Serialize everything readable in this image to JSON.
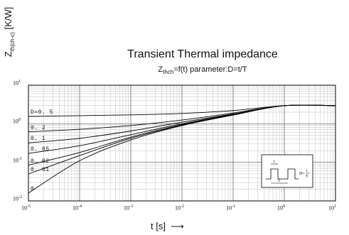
{
  "chart_data": {
    "type": "line",
    "title": "Transient Thermal impedance",
    "subtitle_main": "Z",
    "subtitle_sub": "thch",
    "subtitle_rest": "=f(t) parameter:D=t/T",
    "ylabel_main": "Z",
    "ylabel_sub": "th(ch-c)",
    "ylabel_unit": " [K/W]",
    "xlabel": "t [s]",
    "xlabel_arrow": "⟶",
    "xscale": "log",
    "yscale": "log",
    "xlim": [
      1e-05,
      10
    ],
    "ylim": [
      0.01,
      10
    ],
    "grid": true,
    "x_ticks": [
      {
        "base": "10",
        "exp": "-5"
      },
      {
        "base": "10",
        "exp": "-4"
      },
      {
        "base": "10",
        "exp": "-3"
      },
      {
        "base": "10",
        "exp": "-2"
      },
      {
        "base": "10",
        "exp": "-1"
      },
      {
        "base": "10",
        "exp": "0"
      },
      {
        "base": "10",
        "exp": "1"
      }
    ],
    "y_ticks": [
      {
        "base": "10",
        "exp": "-2"
      },
      {
        "base": "10",
        "exp": "-1"
      },
      {
        "base": "10",
        "exp": "0"
      },
      {
        "base": "10",
        "exp": "1"
      }
    ],
    "series": [
      {
        "name": "D=0. 5",
        "x": [
          1e-05,
          0.0001,
          0.001,
          0.01,
          0.1,
          1,
          10
        ],
        "y": [
          1.55,
          1.62,
          1.7,
          1.85,
          2.2,
          2.95,
          2.95
        ]
      },
      {
        "name": "0. 2",
        "x": [
          1e-05,
          0.0001,
          0.001,
          0.01,
          0.1,
          1,
          10
        ],
        "y": [
          0.62,
          0.72,
          0.9,
          1.25,
          1.9,
          2.95,
          2.95
        ]
      },
      {
        "name": "0. 1",
        "x": [
          1e-05,
          0.0001,
          0.001,
          0.01,
          0.1,
          1,
          10
        ],
        "y": [
          0.32,
          0.42,
          0.65,
          1.1,
          1.8,
          2.95,
          2.95
        ]
      },
      {
        "name": "0. 05",
        "x": [
          1e-05,
          0.0001,
          0.001,
          0.01,
          0.1,
          1,
          10
        ],
        "y": [
          0.17,
          0.27,
          0.52,
          1.0,
          1.75,
          2.95,
          2.95
        ]
      },
      {
        "name": "0. 02",
        "x": [
          1e-05,
          0.0001,
          0.001,
          0.01,
          0.1,
          1,
          10
        ],
        "y": [
          0.085,
          0.18,
          0.45,
          0.95,
          1.72,
          2.95,
          2.95
        ]
      },
      {
        "name": "0. 01",
        "x": [
          1e-05,
          0.0001,
          0.001,
          0.01,
          0.1,
          1,
          10
        ],
        "y": [
          0.05,
          0.15,
          0.42,
          0.92,
          1.7,
          2.95,
          2.95
        ]
      },
      {
        "name": "0",
        "x": [
          1e-05,
          0.0001,
          0.001,
          0.01,
          0.1,
          1,
          10
        ],
        "y": [
          0.016,
          0.11,
          0.38,
          0.9,
          1.68,
          2.95,
          2.95
        ]
      }
    ],
    "inset": {
      "t_label": "t",
      "T_label": "T",
      "formula_lhs": "D=",
      "formula_num": "t",
      "formula_den": "T"
    }
  }
}
